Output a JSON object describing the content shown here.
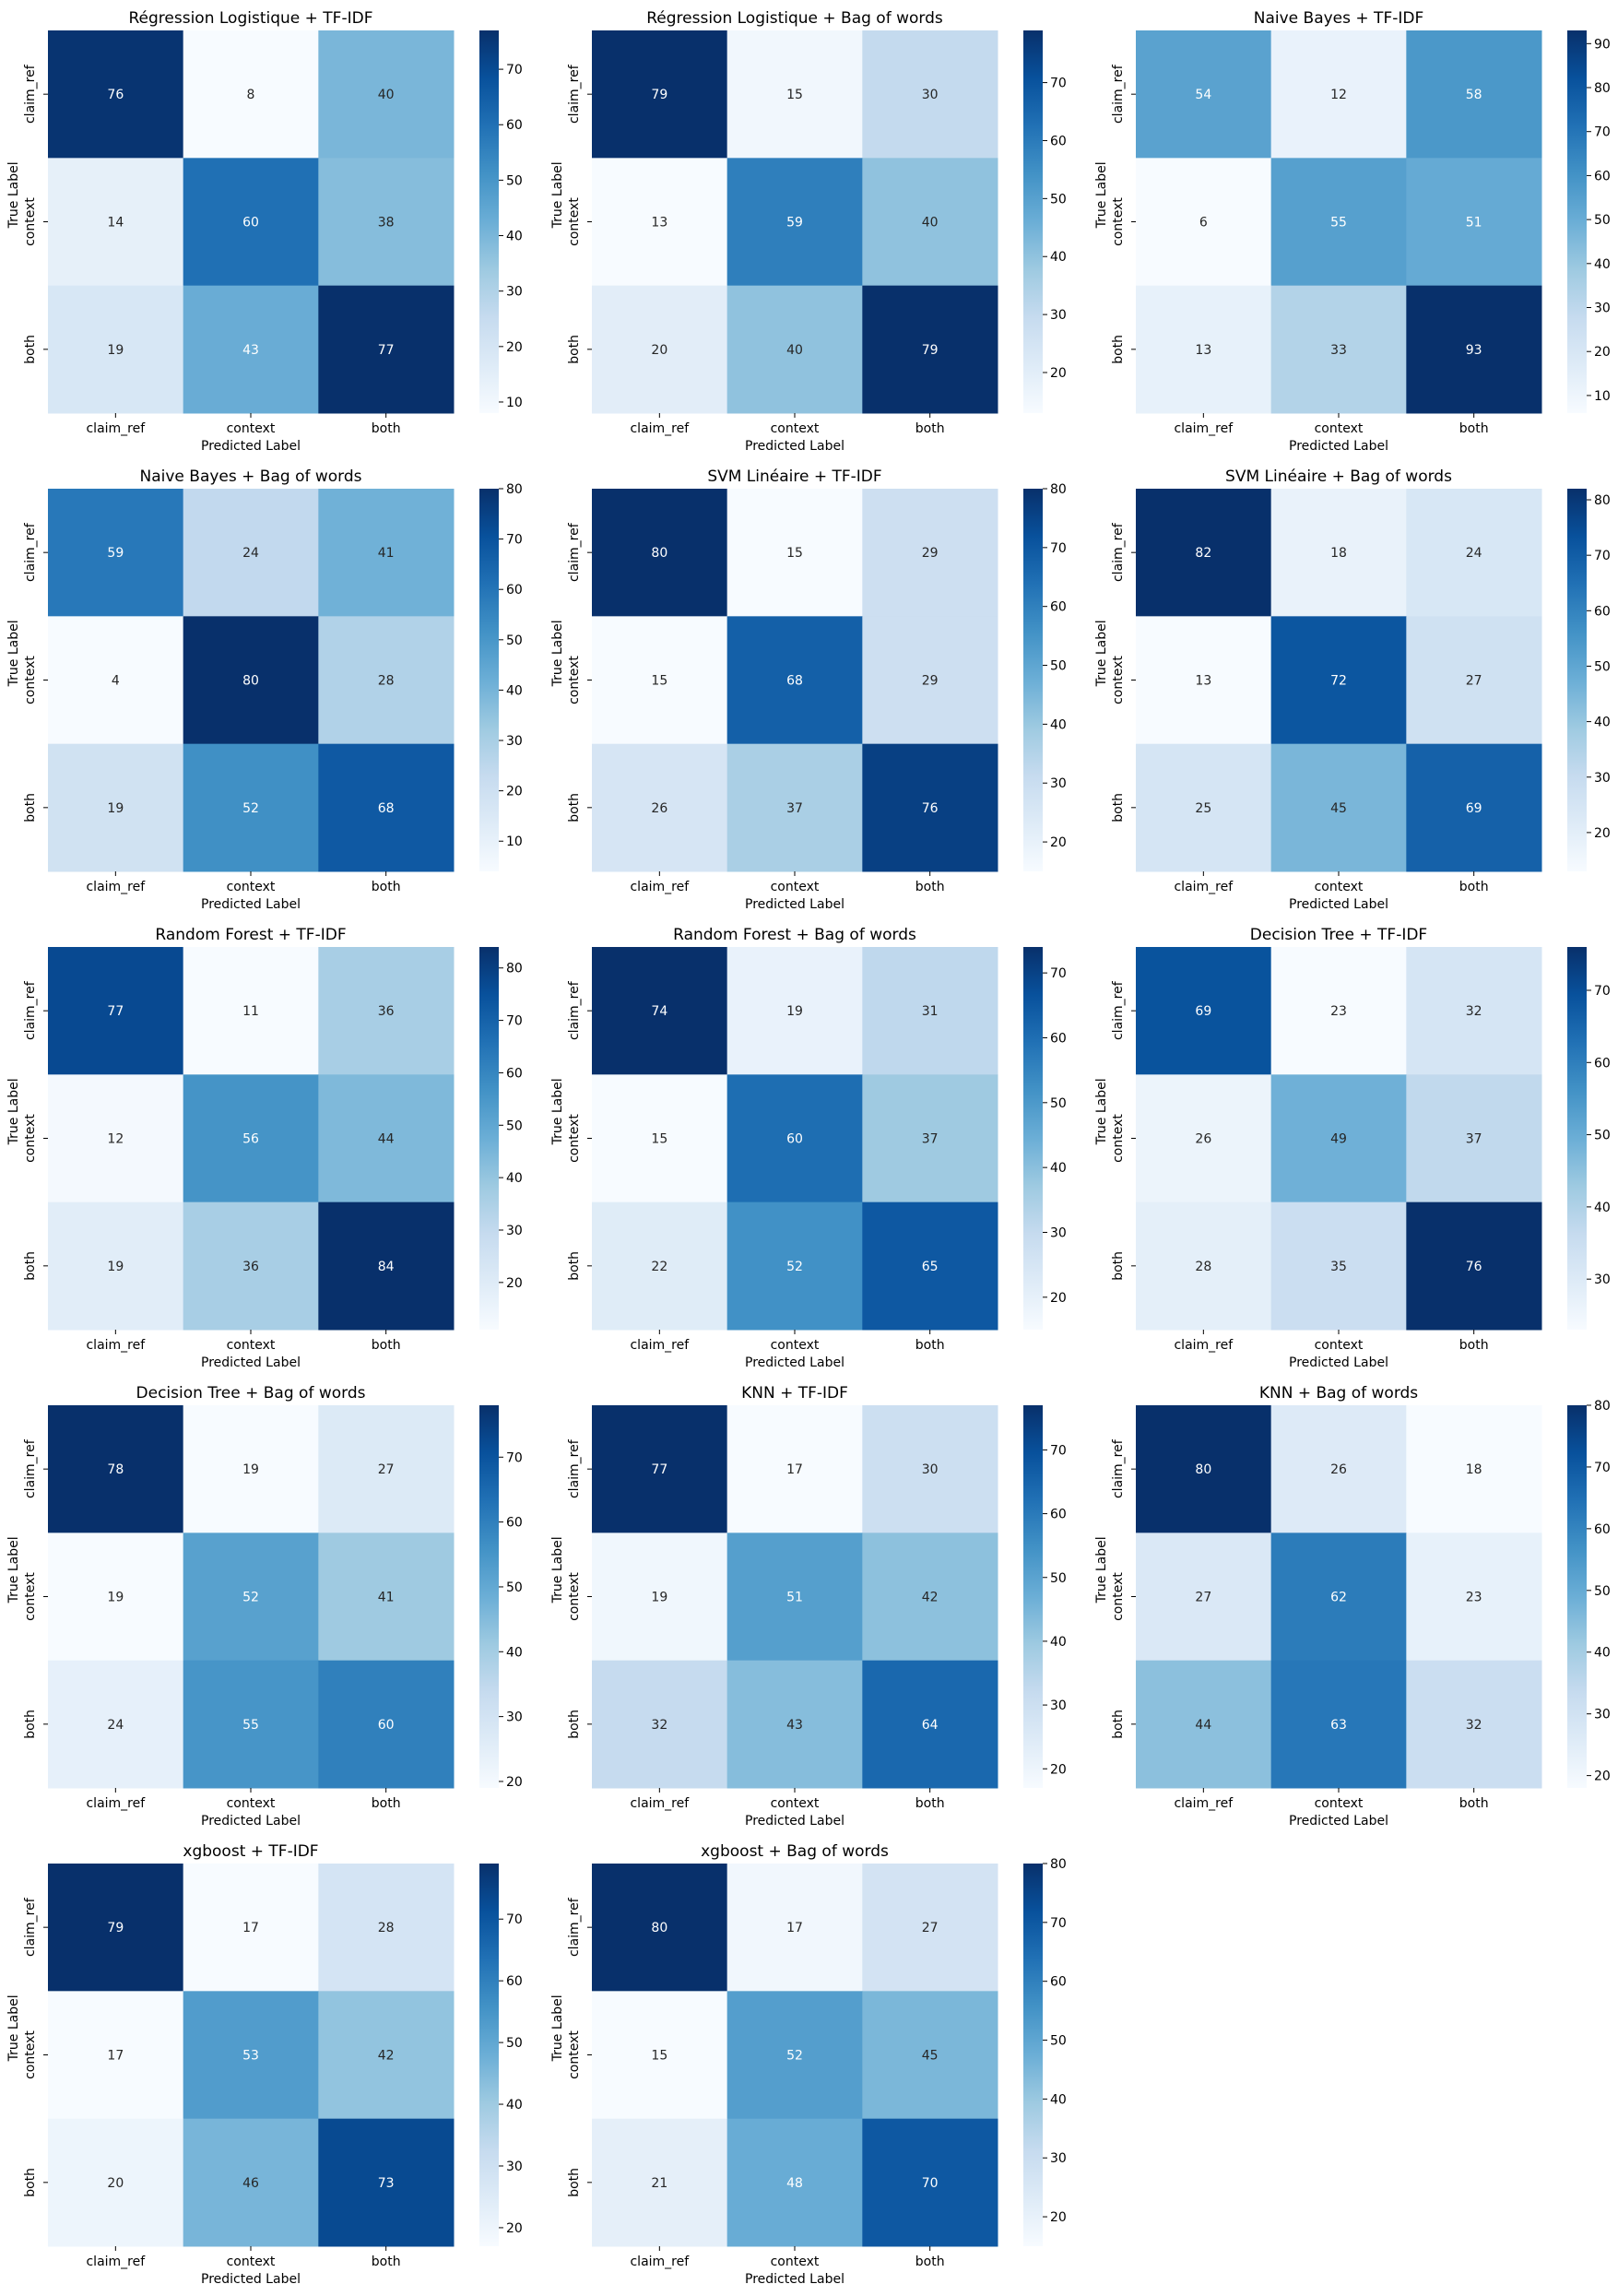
{
  "figure": {
    "columns": 3,
    "cmap_colors": [
      "#f7fbff",
      "#deebf7",
      "#c6dbef",
      "#9ecae1",
      "#6baed6",
      "#4292c6",
      "#2171b5",
      "#08519c",
      "#08306b"
    ]
  },
  "chart_data": [
    {
      "type": "heatmap",
      "title": "Régression Logistique + TF-IDF",
      "xlabel": "Predicted Label",
      "ylabel": "True Label",
      "x_categories": [
        "claim_ref",
        "context",
        "both"
      ],
      "y_categories": [
        "claim_ref",
        "context",
        "both"
      ],
      "values": [
        [
          76,
          8,
          40
        ],
        [
          14,
          60,
          38
        ],
        [
          19,
          43,
          77
        ]
      ],
      "colorbar_ticks": [
        10,
        20,
        30,
        40,
        50,
        60,
        70
      ]
    },
    {
      "type": "heatmap",
      "title": "Régression Logistique + Bag of words",
      "xlabel": "Predicted Label",
      "ylabel": "True Label",
      "x_categories": [
        "claim_ref",
        "context",
        "both"
      ],
      "y_categories": [
        "claim_ref",
        "context",
        "both"
      ],
      "values": [
        [
          79,
          15,
          30
        ],
        [
          13,
          59,
          40
        ],
        [
          20,
          40,
          79
        ]
      ],
      "colorbar_ticks": [
        20,
        30,
        40,
        50,
        60,
        70
      ]
    },
    {
      "type": "heatmap",
      "title": "Naive Bayes + TF-IDF",
      "xlabel": "Predicted Label",
      "ylabel": "True Label",
      "x_categories": [
        "claim_ref",
        "context",
        "both"
      ],
      "y_categories": [
        "claim_ref",
        "context",
        "both"
      ],
      "values": [
        [
          54,
          12,
          58
        ],
        [
          6,
          55,
          51
        ],
        [
          13,
          33,
          93
        ]
      ],
      "colorbar_ticks": [
        10,
        20,
        30,
        40,
        50,
        60,
        70,
        80,
        90
      ]
    },
    {
      "type": "heatmap",
      "title": "Naive Bayes + Bag of words",
      "xlabel": "Predicted Label",
      "ylabel": "True Label",
      "x_categories": [
        "claim_ref",
        "context",
        "both"
      ],
      "y_categories": [
        "claim_ref",
        "context",
        "both"
      ],
      "values": [
        [
          59,
          24,
          41
        ],
        [
          4,
          80,
          28
        ],
        [
          19,
          52,
          68
        ]
      ],
      "colorbar_ticks": [
        10,
        20,
        30,
        40,
        50,
        60,
        70,
        80
      ]
    },
    {
      "type": "heatmap",
      "title": "SVM Linéaire + TF-IDF",
      "xlabel": "Predicted Label",
      "ylabel": "True Label",
      "x_categories": [
        "claim_ref",
        "context",
        "both"
      ],
      "y_categories": [
        "claim_ref",
        "context",
        "both"
      ],
      "values": [
        [
          80,
          15,
          29
        ],
        [
          15,
          68,
          29
        ],
        [
          26,
          37,
          76
        ]
      ],
      "colorbar_ticks": [
        20,
        30,
        40,
        50,
        60,
        70,
        80
      ]
    },
    {
      "type": "heatmap",
      "title": "SVM Linéaire + Bag of words",
      "xlabel": "Predicted Label",
      "ylabel": "True Label",
      "x_categories": [
        "claim_ref",
        "context",
        "both"
      ],
      "y_categories": [
        "claim_ref",
        "context",
        "both"
      ],
      "values": [
        [
          82,
          18,
          24
        ],
        [
          13,
          72,
          27
        ],
        [
          25,
          45,
          69
        ]
      ],
      "colorbar_ticks": [
        20,
        30,
        40,
        50,
        60,
        70,
        80
      ]
    },
    {
      "type": "heatmap",
      "title": "Random Forest + TF-IDF",
      "xlabel": "Predicted Label",
      "ylabel": "True Label",
      "x_categories": [
        "claim_ref",
        "context",
        "both"
      ],
      "y_categories": [
        "claim_ref",
        "context",
        "both"
      ],
      "values": [
        [
          77,
          11,
          36
        ],
        [
          12,
          56,
          44
        ],
        [
          19,
          36,
          84
        ]
      ],
      "colorbar_ticks": [
        20,
        30,
        40,
        50,
        60,
        70,
        80
      ]
    },
    {
      "type": "heatmap",
      "title": "Random Forest + Bag of words",
      "xlabel": "Predicted Label",
      "ylabel": "True Label",
      "x_categories": [
        "claim_ref",
        "context",
        "both"
      ],
      "y_categories": [
        "claim_ref",
        "context",
        "both"
      ],
      "values": [
        [
          74,
          19,
          31
        ],
        [
          15,
          60,
          37
        ],
        [
          22,
          52,
          65
        ]
      ],
      "colorbar_ticks": [
        20,
        30,
        40,
        50,
        60,
        70
      ]
    },
    {
      "type": "heatmap",
      "title": "Decision Tree + TF-IDF",
      "xlabel": "Predicted Label",
      "ylabel": "True Label",
      "x_categories": [
        "claim_ref",
        "context",
        "both"
      ],
      "y_categories": [
        "claim_ref",
        "context",
        "both"
      ],
      "values": [
        [
          69,
          23,
          32
        ],
        [
          26,
          49,
          37
        ],
        [
          28,
          35,
          76
        ]
      ],
      "colorbar_ticks": [
        30,
        40,
        50,
        60,
        70
      ]
    },
    {
      "type": "heatmap",
      "title": "Decision Tree + Bag of words",
      "xlabel": "Predicted Label",
      "ylabel": "True Label",
      "x_categories": [
        "claim_ref",
        "context",
        "both"
      ],
      "y_categories": [
        "claim_ref",
        "context",
        "both"
      ],
      "values": [
        [
          78,
          19,
          27
        ],
        [
          19,
          52,
          41
        ],
        [
          24,
          55,
          60
        ]
      ],
      "colorbar_ticks": [
        20,
        30,
        40,
        50,
        60,
        70
      ]
    },
    {
      "type": "heatmap",
      "title": "KNN + TF-IDF",
      "xlabel": "Predicted Label",
      "ylabel": "True Label",
      "x_categories": [
        "claim_ref",
        "context",
        "both"
      ],
      "y_categories": [
        "claim_ref",
        "context",
        "both"
      ],
      "values": [
        [
          77,
          17,
          30
        ],
        [
          19,
          51,
          42
        ],
        [
          32,
          43,
          64
        ]
      ],
      "colorbar_ticks": [
        20,
        30,
        40,
        50,
        60,
        70
      ]
    },
    {
      "type": "heatmap",
      "title": "KNN + Bag of words",
      "xlabel": "Predicted Label",
      "ylabel": "True Label",
      "x_categories": [
        "claim_ref",
        "context",
        "both"
      ],
      "y_categories": [
        "claim_ref",
        "context",
        "both"
      ],
      "values": [
        [
          80,
          26,
          18
        ],
        [
          27,
          62,
          23
        ],
        [
          44,
          63,
          32
        ]
      ],
      "colorbar_ticks": [
        20,
        30,
        40,
        50,
        60,
        70,
        80
      ]
    },
    {
      "type": "heatmap",
      "title": "xgboost + TF-IDF",
      "xlabel": "Predicted Label",
      "ylabel": "True Label",
      "x_categories": [
        "claim_ref",
        "context",
        "both"
      ],
      "y_categories": [
        "claim_ref",
        "context",
        "both"
      ],
      "values": [
        [
          79,
          17,
          28
        ],
        [
          17,
          53,
          42
        ],
        [
          20,
          46,
          73
        ]
      ],
      "colorbar_ticks": [
        20,
        30,
        40,
        50,
        60,
        70
      ]
    },
    {
      "type": "heatmap",
      "title": "xgboost + Bag of words",
      "xlabel": "Predicted Label",
      "ylabel": "True Label",
      "x_categories": [
        "claim_ref",
        "context",
        "both"
      ],
      "y_categories": [
        "claim_ref",
        "context",
        "both"
      ],
      "values": [
        [
          80,
          17,
          27
        ],
        [
          15,
          52,
          45
        ],
        [
          21,
          48,
          70
        ]
      ],
      "colorbar_ticks": [
        20,
        30,
        40,
        50,
        60,
        70,
        80
      ]
    }
  ]
}
